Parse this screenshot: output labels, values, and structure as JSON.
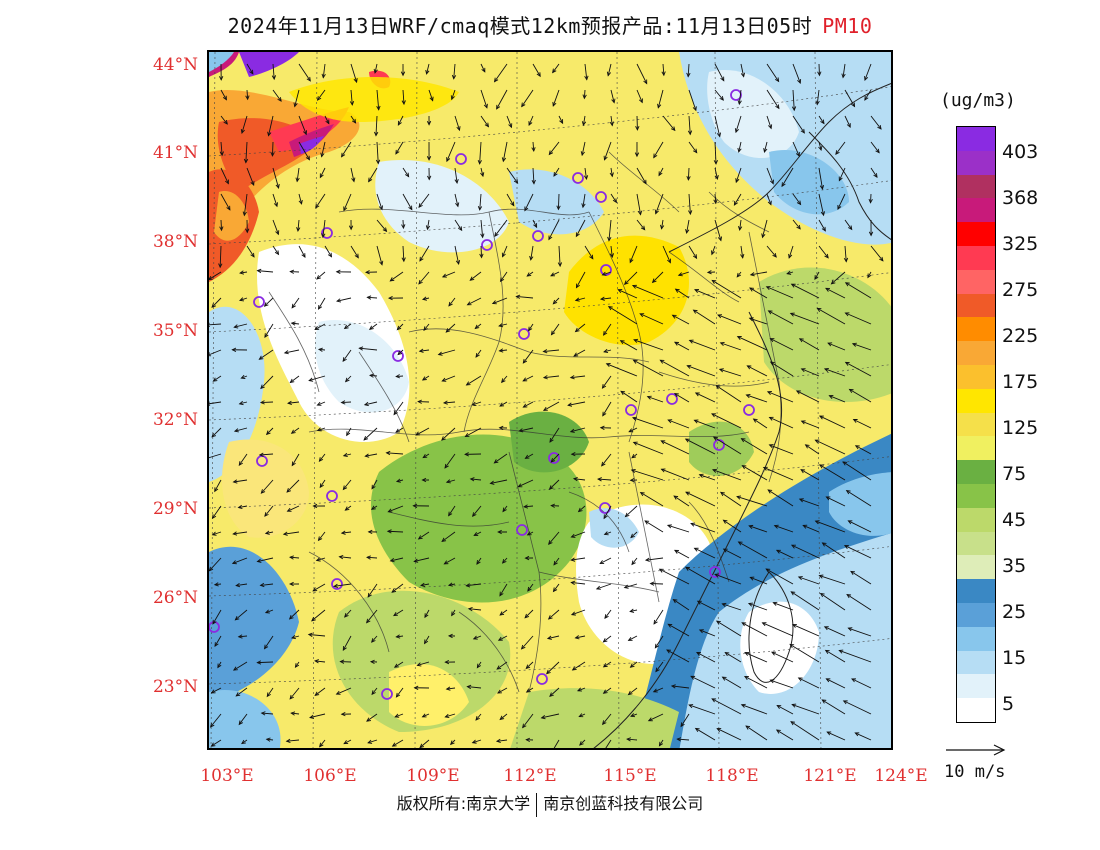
{
  "title": "2024年11月13日WRF/cmaq模式12km预报产品:11月13日05时",
  "pollutant": "PM10",
  "lat_labels": [
    "44°N",
    "41°N",
    "38°N",
    "35°N",
    "32°N",
    "29°N",
    "26°N",
    "23°N"
  ],
  "lon_labels": [
    "103°E",
    "106°E",
    "109°E",
    "112°E",
    "115°E",
    "118°E",
    "121°E",
    "124°E"
  ],
  "colorbar": {
    "unit": "(ug/m3)",
    "labels": [
      "403",
      "368",
      "325",
      "275",
      "225",
      "175",
      "125",
      "75",
      "45",
      "35",
      "25",
      "15",
      "5"
    ],
    "colors": [
      "#8a2be2",
      "#9b30c8",
      "#b03060",
      "#c81a7a",
      "#ff0000",
      "#ff3a52",
      "#ff6464",
      "#f05a28",
      "#ff8c00",
      "#f9a835",
      "#fbc02d",
      "#ffe600",
      "#f5e04a",
      "#f0f060",
      "#6ab042",
      "#88c348",
      "#bcd96a",
      "#c8e08a",
      "#deedb8",
      "#3a88c4",
      "#5aa0d8",
      "#88c6ec",
      "#b6ddf4",
      "#e2f2fa",
      "#ffffff"
    ]
  },
  "wind_reference": "10 m/s",
  "copyright_left": "版权所有:南京大学",
  "copyright_right": "南京创蓝科技有限公司"
}
